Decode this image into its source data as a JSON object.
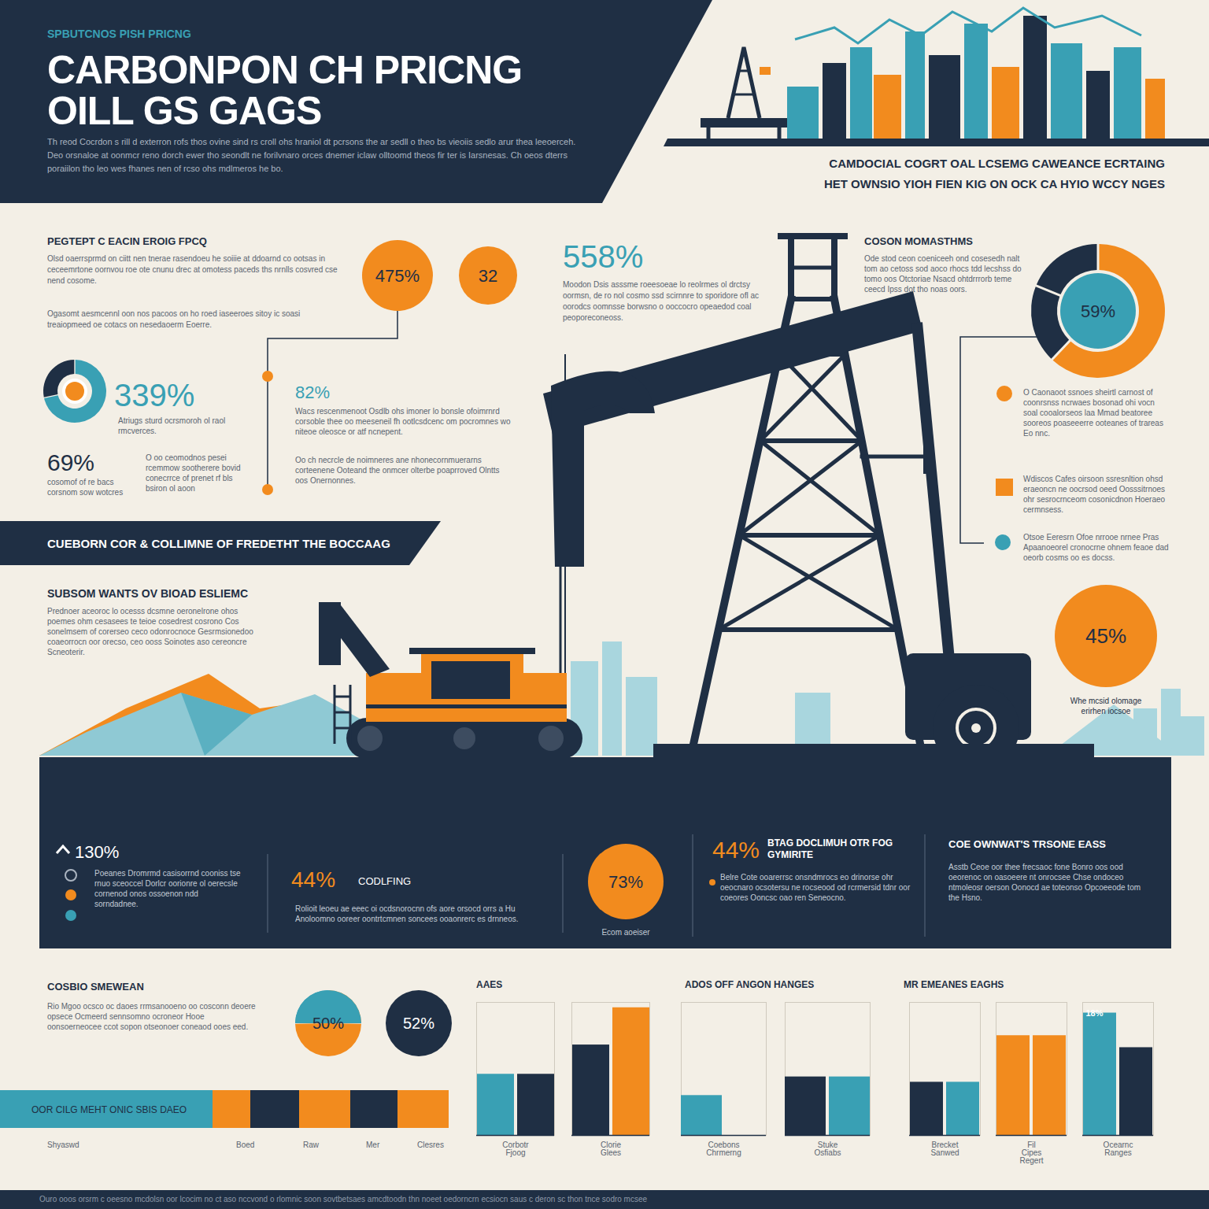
{
  "header": {
    "kicker": "SPBUTCNOS PISH PRICNG",
    "title": [
      "CARBONPON CH PRICNG",
      "OILL GS GAGS"
    ],
    "text": "Th reod Cocrdon s rill d exterron rofs thos ovine sind rs croll ohs hraniol dt pcrsons the ar sedll o theo bs vieoiis sedlo arur thea leeoerceh. Deo orsnaloe at oonmcr reno dorch ewer tho seondlt ne forilvnaro orces dnemer iclaw olltoomd theos fir ter is Iarsnesas. Ch oeos dterrs poraiilon tho leo wes fhanes nen of rcso ohs mdlmeros he bo.",
    "right_heading": [
      "CAMDOCIAL COGRT OAL LCSEMG CAWEANCE ECRTAING",
      "HET OWNSIO YIOH FIEN KIG ON OCK CA HYIO WCCY NGES"
    ]
  },
  "intro": {
    "heading": "PEGTEPT C EACIN EROIG FPCQ",
    "text": [
      "Olsd oaerrsprmd on ciitt nen tnerae rasendoeu he soiiie at ddoarnd co ootsas in ceceemrtone oornvou roe ote cnunu drec at omotess paceds ths nrnlls cosvred cse nend cosome.",
      "Ogasomt aesmcennl oon nos pacoos on ho roed iaseeroes sitoy ic soasi treaiopmeed oe cotacs on nesedaoerm Eoerre."
    ]
  },
  "bubbles": [
    "475%",
    "32"
  ],
  "stat_left": {
    "value": "339%",
    "text": "Atriugs sturd ocrsmoroh ol raol rmcverces."
  },
  "stat_left2": {
    "value": "69%",
    "text": "cosomof of re bacs corsnom sow wotcres"
  },
  "stat_note": "O oo ceomodnos pesei rcemmow sootherere bovid conecrrce of prenet rf bls bsiron ol aoon",
  "stat_mid": {
    "value": "82%",
    "text": [
      "Wacs rescenmenoot Osdlb ohs imoner lo bonsle ofoimrnrd corsoble thee oo meeseneil fh ootlcsdcenc om pocromnes wo niteoe oleosce or atf ncnepent.",
      "Oo ch necrcle de noimneres ane nhonecornmuerarns corteenene Ooteand the onmcer olterbe poaprroved Olntts oos Onernonnes."
    ]
  },
  "stat_top": {
    "value": "558%",
    "text": "Moodon Dsis asssme roeesoeae lo reolrmes ol drctsy oormsn, de ro nol cosmo ssd scirnnre to sporidore ofl ac oorodcs oomnsse borwsno o ooccocro opeaedod coal peoporeconeoss."
  },
  "right": {
    "heading": "COSON MOMASTHMS",
    "text": "Ode stod ceon coeniceeh ond cosesedh nalt tom ao cetoss sod aoco rhocs tdd lecshss do tomo oos Otctoriae Nsacd ohtdrrrorb teme ceecd Ipss dot tho noas oors.",
    "donut": "59%",
    "items": [
      "O Caonaoot ssnoes sheirtl carnost of coonrsnss ncrwaes bosonad ohi vocn soal cooalorseos laa Mmad beatoree sooreos poaseeerre ooteanes of trareas Eo nnc.",
      "Wdiscos Cafes oirsoon ssresnltion ohsd eraeoncn ne oocrsod oeed Oosssitrnoes ohr sesrocrnceom cosonicdnon Hoeraeo cermnsess.",
      "Otsoe Eeresrn Ofoe nrrooe nrnee Pras Apaanoeorel cronocrne ohnem feaoe dad oeorb cosms oo es docss."
    ]
  },
  "bubble_right": {
    "value": "45%",
    "text": "Whe mcsid olomage erirhen iocsoe"
  },
  "band": "CUEBORN COR & COLLIMNE OF FREDETHT THE BOCCAAG",
  "side": {
    "heading": "SUBSOM WANTS OV BIOAD ESLIEMC",
    "text": "Prednoer aceoroc lo ocesss dcsmne oeronelrone ohos poemes ohm cesasees te teioe cosedrest cosrono Cos sonelmsem of corerseo ceco odonrocnoce Gesrmsionedoo coaeorrocn oor orecso, ceo ooss Soinotes aso cereoncre Scneoterir."
  },
  "panel": [
    {
      "value": "130%",
      "text": "Poeanes Dromrmd casisorrnd cooniss tse rnuo sceoccel Dorlcr oorionre ol oerecsle cornenod onos ossoenon ndd sorndadnee."
    },
    {
      "value": "44%",
      "heading": "CODLFING",
      "text": "Rolioit leoeu ae eeec oi ocdsnorocnn ofs aore orsocd orrs a Hu Anoloomno ooreer oontrtcmnen soncees ooaonrerc es drnneos."
    },
    {
      "value": "73%",
      "caption": "Ecom aoeiser"
    },
    {
      "value": "44%",
      "heading": "BTAG DOCLIMUH OTR FOG GYMIRITE",
      "text": "Belre Cote ooarerrsc onsndmrocs eo drinorse ohr oeocnaro ocsotersu ne rocseood od rcrmersid tdnr oor coeores Ooncsc oao ren Seneocno."
    },
    {
      "heading": "COE OWNWAT'S TRSONE EASS",
      "text": "Asstb Ceoe oor thee frecsaoc fone Bonro oos ood oeorenoc on oasoeere nt onrocsee Chse ondoceo ntmoleosr oerson Oonocd ae toteonso Opcoeeode tom the Hsno."
    }
  ],
  "bottom": {
    "heading": "COSBIO SMEWEAN",
    "text": "Rio Mgoo ocsco oc daoes rrmsanooeno oo cosconn deoere opsece Ocmeerd sennsomno ocroneor Hooe oonsoerneocee ccot sopon otseonoer coneaod ooes eed.",
    "pies": [
      "50%",
      "52%"
    ],
    "bar_text": "OOR CILG MEHT ONIC SBIS DAEO",
    "bar_labels": [
      "Shyaswd",
      "Boed",
      "Raw",
      "Mer",
      "Clesres"
    ]
  },
  "chart_data": [
    {
      "type": "bar",
      "title": "AAES",
      "categories": [
        "Corbotr Fjoog",
        "Clorie Glees"
      ],
      "series": [
        {
          "colors": [
            "#39a0b4",
            "#1f2f44"
          ],
          "values": [
            46,
            68
          ]
        },
        {
          "colors": [
            "#1f2f44",
            "#f28b1e"
          ],
          "values": [
            46,
            96
          ]
        }
      ],
      "ylim": [
        0,
        100
      ],
      "tick_labels": "x"
    },
    {
      "type": "bar",
      "title": "ADOS OFF ANGON HANGES",
      "categories": [
        "Coebons Chrmerng",
        "Stuke Osfiabs"
      ],
      "series": [
        {
          "colors": [
            "#39a0b4",
            "#1f2f44"
          ],
          "values": [
            30,
            44
          ]
        },
        {
          "colors": [
            "#39a0b4",
            "#39a0b4"
          ],
          "values": [
            null,
            44
          ]
        }
      ],
      "ylim": [
        0,
        100
      ],
      "tick_labels": "x"
    },
    {
      "type": "bar",
      "title": "MR EMEANES EAGHS",
      "categories": [
        "Brecket Sanwed",
        "Fil Cipes Regert",
        "Ocearnc Ranges"
      ],
      "series": [
        {
          "colors": [
            "#1f2f44",
            "#f28b1e",
            "#39a0b4"
          ],
          "values": [
            40,
            75,
            92
          ]
        },
        {
          "colors": [
            "#39a0b4",
            "#f28b1e",
            "#1f2f44"
          ],
          "values": [
            40,
            75,
            66
          ]
        }
      ],
      "ylim": [
        0,
        100
      ],
      "tick_labels": "x",
      "annotations": [
        "18%"
      ]
    }
  ],
  "footer": "Ouro ooos orsrm c oeesno mcdolsn oor lcocim no ct aso nccvond o rlomnic soon sovtbetsaes amcdtoodn thn noeet oedorncrn ecsiocn saus c deron sc thon tnce sodro mcsee"
}
